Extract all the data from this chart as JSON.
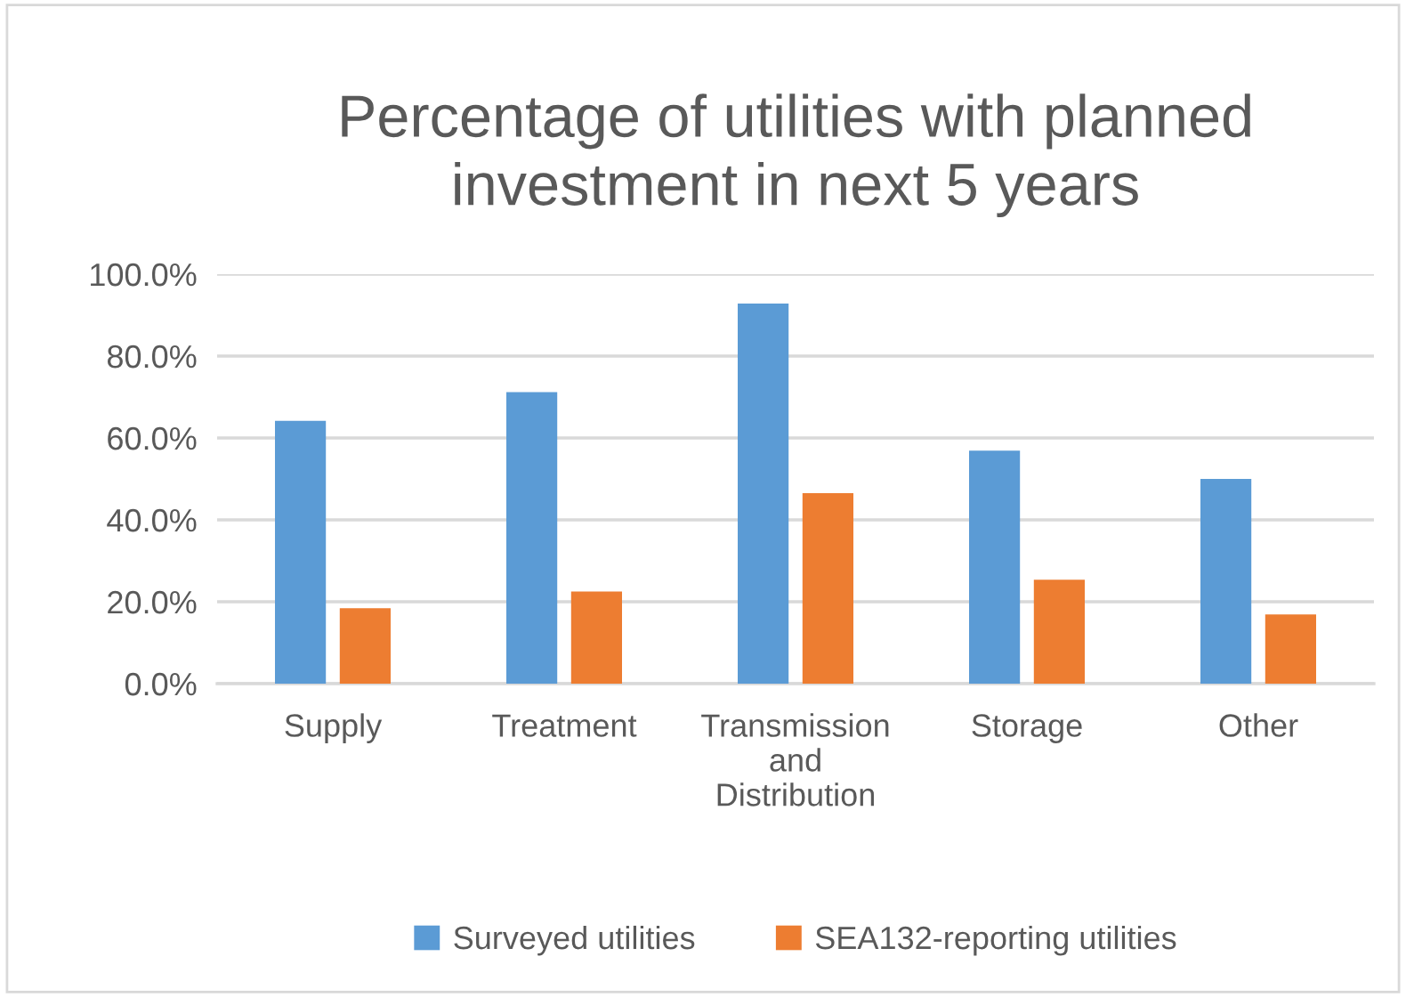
{
  "chart_data": {
    "type": "bar",
    "title": "Percentage of utilities with planned\ninvestment in next 5 years",
    "categories": [
      "Supply",
      "Treatment",
      "Transmission and Distribution",
      "Storage",
      "Other"
    ],
    "series": [
      {
        "name": "Surveyed utilities",
        "color": "#5b9bd5",
        "values": [
          64.2,
          71.2,
          92.8,
          56.9,
          50.0
        ]
      },
      {
        "name": "SEA132-reporting utilities",
        "color": "#ed7d31",
        "values": [
          18.4,
          22.5,
          46.5,
          25.4,
          16.9
        ]
      }
    ],
    "ylim": [
      0,
      100
    ],
    "yticks": [
      {
        "value": 0,
        "label": "0.0%"
      },
      {
        "value": 20,
        "label": "20.0%"
      },
      {
        "value": 40,
        "label": "40.0%"
      },
      {
        "value": 60,
        "label": "60.0%"
      },
      {
        "value": 80,
        "label": "80.0%"
      },
      {
        "value": 100,
        "label": "100.0%"
      }
    ],
    "grid": "y",
    "legend": "bottom"
  }
}
